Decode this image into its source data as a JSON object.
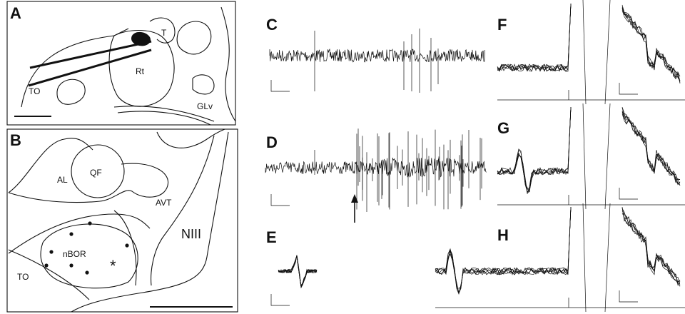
{
  "panels": [
    {
      "letter": "A",
      "labels": [
        "T",
        "Rt",
        "TO",
        "GLv"
      ]
    },
    {
      "letter": "B",
      "labels": [
        "AL",
        "QF",
        "AVT",
        "NIII",
        "nBOR",
        "TO",
        "*"
      ]
    },
    {
      "letter": "C"
    },
    {
      "letter": "D"
    },
    {
      "letter": "E"
    },
    {
      "letter": "F"
    },
    {
      "letter": "G"
    },
    {
      "letter": "H"
    }
  ]
}
